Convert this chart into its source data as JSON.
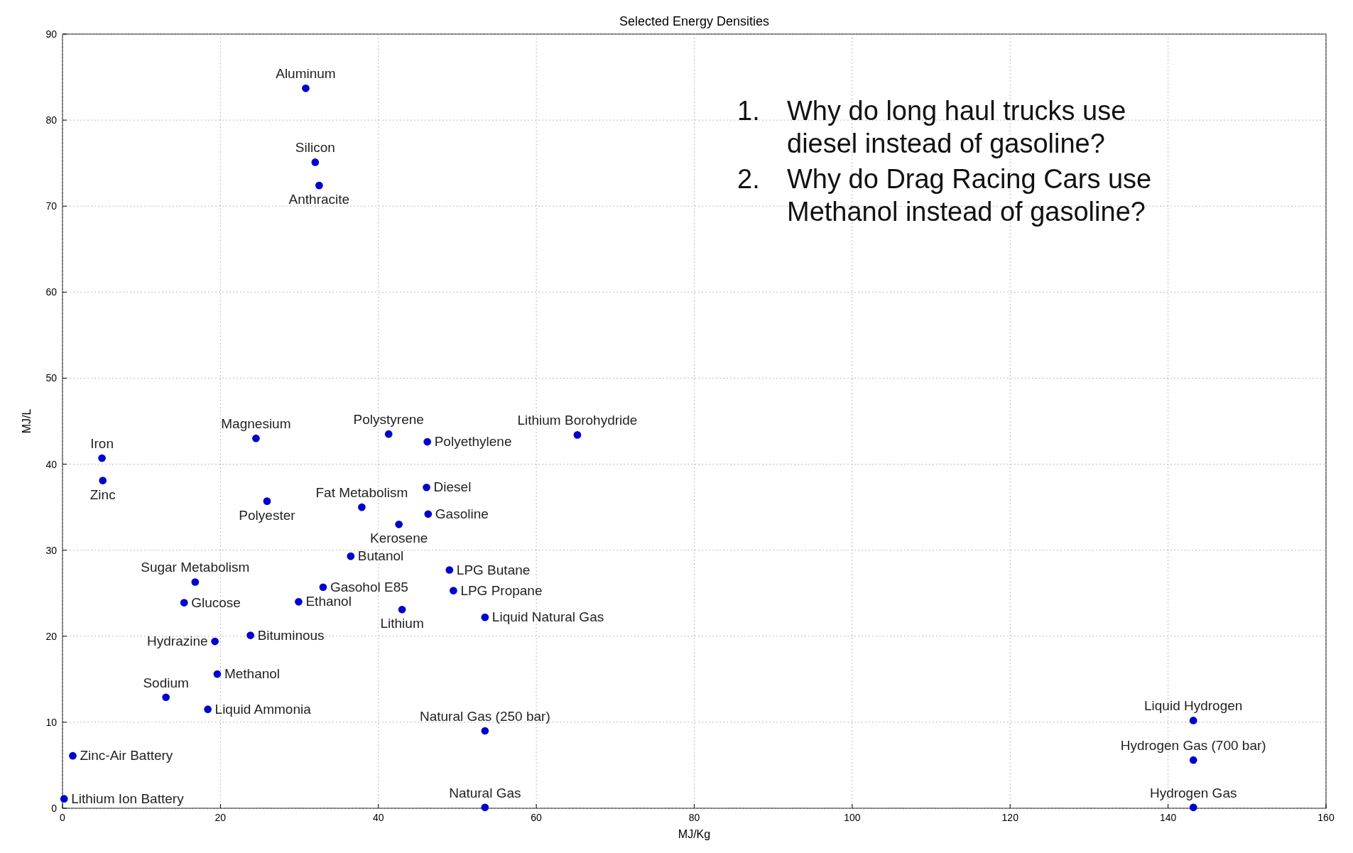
{
  "chart_data": {
    "type": "scatter",
    "title": "Selected Energy Densities",
    "xlabel": "MJ/Kg",
    "ylabel": "MJ/L",
    "x": [
      30.8,
      32.0,
      32.5,
      24.5,
      41.3,
      46.2,
      65.2,
      5.0,
      5.1,
      46.1,
      37.9,
      25.9,
      46.3,
      42.6,
      36.5,
      49.0,
      16.8,
      33.0,
      49.5,
      15.4,
      29.9,
      43.0,
      53.5,
      23.8,
      19.3,
      19.6,
      13.1,
      18.4,
      53.5,
      1.3,
      0.2,
      53.5,
      143.2,
      143.2,
      143.2
    ],
    "values": [
      83.7,
      75.1,
      72.4,
      43.0,
      43.5,
      42.6,
      43.4,
      40.7,
      38.1,
      37.3,
      35.0,
      35.7,
      34.2,
      33.0,
      29.3,
      27.7,
      26.3,
      25.7,
      25.3,
      23.9,
      24.0,
      23.1,
      22.2,
      20.1,
      19.4,
      15.6,
      12.9,
      11.5,
      9.0,
      6.1,
      1.1,
      0.1,
      10.2,
      5.6,
      0.1
    ],
    "color": "#0000cc",
    "marker": "circle",
    "grid": true,
    "xlim": [
      0,
      160
    ],
    "xticks": [
      0,
      20,
      40,
      60,
      80,
      100,
      120,
      140,
      160
    ],
    "ylim": [
      0,
      90
    ],
    "yticks": [
      0,
      10,
      20,
      30,
      40,
      50,
      60,
      70,
      80,
      90
    ],
    "annotations": [
      {
        "text": "Aluminum",
        "x": 30.8,
        "y": 83.7
      },
      {
        "text": "Silicon",
        "x": 32.0,
        "y": 75.1
      },
      {
        "text": "Anthracite",
        "x": 32.5,
        "y": 72.4
      },
      {
        "text": "Magnesium",
        "x": 24.5,
        "y": 43.0
      },
      {
        "text": "Polystyrene",
        "x": 41.3,
        "y": 43.5
      },
      {
        "text": "Polyethylene",
        "x": 46.2,
        "y": 42.6
      },
      {
        "text": "Lithium Borohydride",
        "x": 65.2,
        "y": 43.4
      },
      {
        "text": "Iron",
        "x": 5.0,
        "y": 40.7
      },
      {
        "text": "Zinc",
        "x": 5.1,
        "y": 38.1
      },
      {
        "text": "Diesel",
        "x": 46.1,
        "y": 37.3
      },
      {
        "text": "Fat Metabolism",
        "x": 37.9,
        "y": 35.0
      },
      {
        "text": "Polyester",
        "x": 25.9,
        "y": 35.7
      },
      {
        "text": "Gasoline",
        "x": 46.3,
        "y": 34.2
      },
      {
        "text": "Kerosene",
        "x": 42.6,
        "y": 33.0
      },
      {
        "text": "Butanol",
        "x": 36.5,
        "y": 29.3
      },
      {
        "text": "LPG Butane",
        "x": 49.0,
        "y": 27.7
      },
      {
        "text": "Sugar Metabolism",
        "x": 16.8,
        "y": 26.3
      },
      {
        "text": "Gasohol E85",
        "x": 33.0,
        "y": 25.7
      },
      {
        "text": "LPG Propane",
        "x": 49.5,
        "y": 25.3
      },
      {
        "text": "Glucose",
        "x": 15.4,
        "y": 23.9
      },
      {
        "text": "Ethanol",
        "x": 29.9,
        "y": 24.0
      },
      {
        "text": "Lithium",
        "x": 43.0,
        "y": 23.1
      },
      {
        "text": "Liquid Natural Gas",
        "x": 53.5,
        "y": 22.2
      },
      {
        "text": "Bituminous",
        "x": 23.8,
        "y": 20.1
      },
      {
        "text": "Hydrazine",
        "x": 19.3,
        "y": 19.4
      },
      {
        "text": "Methanol",
        "x": 19.6,
        "y": 15.6
      },
      {
        "text": "Sodium",
        "x": 13.1,
        "y": 12.9
      },
      {
        "text": "Liquid Ammonia",
        "x": 18.4,
        "y": 11.5
      },
      {
        "text": "Natural Gas (250 bar)",
        "x": 53.5,
        "y": 9.0
      },
      {
        "text": "Zinc-Air Battery",
        "x": 1.3,
        "y": 6.1
      },
      {
        "text": "Lithium Ion Battery",
        "x": 0.2,
        "y": 1.1
      },
      {
        "text": "Natural Gas",
        "x": 53.5,
        "y": 0.1
      },
      {
        "text": "Liquid Hydrogen",
        "x": 143.2,
        "y": 10.2
      },
      {
        "text": "Hydrogen Gas (700 bar)",
        "x": 143.2,
        "y": 5.6
      },
      {
        "text": "Hydrogen Gas",
        "x": 143.2,
        "y": 0.1
      },
      "1. Why do long haul trucks use diesel instead of gasoline?",
      "2. Why do Drag Racing Cars use Methanol instead of gasoline?"
    ]
  }
}
